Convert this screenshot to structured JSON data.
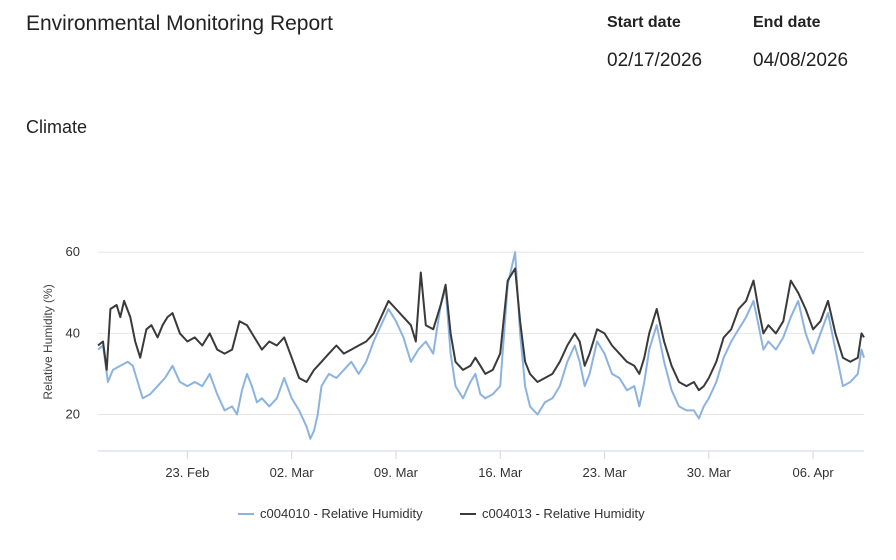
{
  "header": {
    "title": "Environmental Monitoring Report",
    "start_label": "Start date",
    "start_value": "02/17/2026",
    "end_label": "End date",
    "end_value": "04/08/2026"
  },
  "section": {
    "title": "Climate"
  },
  "chart_data": {
    "type": "line",
    "title": "",
    "ylabel": "Relative Humidity (%)",
    "xlabel": "",
    "ylim": [
      11,
      64
    ],
    "xlim": [
      "2026-02-17",
      "2026-04-09T10:00"
    ],
    "y_ticks": [
      20,
      40,
      60
    ],
    "x_ticks": [
      {
        "date": "2026-02-23",
        "label": "23. Feb"
      },
      {
        "date": "2026-03-02",
        "label": "02. Mar"
      },
      {
        "date": "2026-03-09",
        "label": "09. Mar"
      },
      {
        "date": "2026-03-16",
        "label": "16. Mar"
      },
      {
        "date": "2026-03-23",
        "label": "23. Mar"
      },
      {
        "date": "2026-03-30",
        "label": "30. Mar"
      },
      {
        "date": "2026-04-06",
        "label": "06. Apr"
      }
    ],
    "grid": true,
    "legend": "bottom-center",
    "series": [
      {
        "name": "c004010 - Relative Humidity",
        "color": "#8cb3e0",
        "points": [
          [
            "2026-02-17T00:00",
            36
          ],
          [
            "2026-02-17T08:00",
            37
          ],
          [
            "2026-02-17T16:00",
            28
          ],
          [
            "2026-02-18T00:00",
            31
          ],
          [
            "2026-02-18T12:00",
            32
          ],
          [
            "2026-02-19T00:00",
            33
          ],
          [
            "2026-02-19T08:00",
            32
          ],
          [
            "2026-02-19T16:00",
            28
          ],
          [
            "2026-02-20T00:00",
            24
          ],
          [
            "2026-02-20T12:00",
            25
          ],
          [
            "2026-02-21T00:00",
            27
          ],
          [
            "2026-02-21T12:00",
            29
          ],
          [
            "2026-02-22T00:00",
            32
          ],
          [
            "2026-02-22T12:00",
            28
          ],
          [
            "2026-02-23T00:00",
            27
          ],
          [
            "2026-02-23T12:00",
            28
          ],
          [
            "2026-02-24T00:00",
            27
          ],
          [
            "2026-02-24T12:00",
            30
          ],
          [
            "2026-02-25T00:00",
            25
          ],
          [
            "2026-02-25T12:00",
            21
          ],
          [
            "2026-02-26T00:00",
            22
          ],
          [
            "2026-02-26T08:00",
            20
          ],
          [
            "2026-02-26T16:00",
            26
          ],
          [
            "2026-02-27T00:00",
            30
          ],
          [
            "2026-02-27T08:00",
            27
          ],
          [
            "2026-02-27T16:00",
            23
          ],
          [
            "2026-02-28T00:00",
            24
          ],
          [
            "2026-02-28T12:00",
            22
          ],
          [
            "2026-03-01T00:00",
            24
          ],
          [
            "2026-03-01T12:00",
            29
          ],
          [
            "2026-03-02T00:00",
            24
          ],
          [
            "2026-03-02T12:00",
            21
          ],
          [
            "2026-03-03T00:00",
            17
          ],
          [
            "2026-03-03T06:00",
            14
          ],
          [
            "2026-03-03T12:00",
            16
          ],
          [
            "2026-03-03T18:00",
            20
          ],
          [
            "2026-03-04T00:00",
            27
          ],
          [
            "2026-03-04T12:00",
            30
          ],
          [
            "2026-03-05T00:00",
            29
          ],
          [
            "2026-03-05T12:00",
            31
          ],
          [
            "2026-03-06T00:00",
            33
          ],
          [
            "2026-03-06T12:00",
            30
          ],
          [
            "2026-03-07T00:00",
            33
          ],
          [
            "2026-03-07T12:00",
            38
          ],
          [
            "2026-03-08T00:00",
            42
          ],
          [
            "2026-03-08T12:00",
            46
          ],
          [
            "2026-03-09T00:00",
            43
          ],
          [
            "2026-03-09T12:00",
            39
          ],
          [
            "2026-03-10T00:00",
            33
          ],
          [
            "2026-03-10T12:00",
            36
          ],
          [
            "2026-03-11T00:00",
            38
          ],
          [
            "2026-03-11T12:00",
            35
          ],
          [
            "2026-03-12T00:00",
            47
          ],
          [
            "2026-03-12T08:00",
            51
          ],
          [
            "2026-03-12T16:00",
            35
          ],
          [
            "2026-03-13T00:00",
            27
          ],
          [
            "2026-03-13T12:00",
            24
          ],
          [
            "2026-03-14T00:00",
            28
          ],
          [
            "2026-03-14T08:00",
            30
          ],
          [
            "2026-03-14T16:00",
            25
          ],
          [
            "2026-03-15T00:00",
            24
          ],
          [
            "2026-03-15T12:00",
            25
          ],
          [
            "2026-03-16T00:00",
            27
          ],
          [
            "2026-03-16T12:00",
            52
          ],
          [
            "2026-03-17T00:00",
            60
          ],
          [
            "2026-03-17T08:00",
            40
          ],
          [
            "2026-03-17T16:00",
            27
          ],
          [
            "2026-03-18T00:00",
            22
          ],
          [
            "2026-03-18T12:00",
            20
          ],
          [
            "2026-03-19T00:00",
            23
          ],
          [
            "2026-03-19T12:00",
            24
          ],
          [
            "2026-03-20T00:00",
            27
          ],
          [
            "2026-03-20T12:00",
            33
          ],
          [
            "2026-03-21T00:00",
            37
          ],
          [
            "2026-03-21T08:00",
            33
          ],
          [
            "2026-03-21T16:00",
            27
          ],
          [
            "2026-03-22T00:00",
            30
          ],
          [
            "2026-03-22T12:00",
            38
          ],
          [
            "2026-03-23T00:00",
            35
          ],
          [
            "2026-03-23T12:00",
            30
          ],
          [
            "2026-03-24T00:00",
            29
          ],
          [
            "2026-03-24T12:00",
            26
          ],
          [
            "2026-03-25T00:00",
            27
          ],
          [
            "2026-03-25T08:00",
            22
          ],
          [
            "2026-03-25T16:00",
            28
          ],
          [
            "2026-03-26T00:00",
            36
          ],
          [
            "2026-03-26T12:00",
            42
          ],
          [
            "2026-03-27T00:00",
            33
          ],
          [
            "2026-03-27T12:00",
            26
          ],
          [
            "2026-03-28T00:00",
            22
          ],
          [
            "2026-03-28T12:00",
            21
          ],
          [
            "2026-03-29T00:00",
            21
          ],
          [
            "2026-03-29T08:00",
            19
          ],
          [
            "2026-03-29T16:00",
            22
          ],
          [
            "2026-03-30T00:00",
            24
          ],
          [
            "2026-03-30T12:00",
            28
          ],
          [
            "2026-03-31T00:00",
            34
          ],
          [
            "2026-03-31T12:00",
            38
          ],
          [
            "2026-04-01T00:00",
            41
          ],
          [
            "2026-04-01T12:00",
            44
          ],
          [
            "2026-04-02T00:00",
            48
          ],
          [
            "2026-04-02T08:00",
            42
          ],
          [
            "2026-04-02T16:00",
            36
          ],
          [
            "2026-04-03T00:00",
            38
          ],
          [
            "2026-04-03T12:00",
            36
          ],
          [
            "2026-04-04T00:00",
            39
          ],
          [
            "2026-04-04T12:00",
            44
          ],
          [
            "2026-04-05T00:00",
            48
          ],
          [
            "2026-04-05T12:00",
            40
          ],
          [
            "2026-04-06T00:00",
            35
          ],
          [
            "2026-04-06T12:00",
            40
          ],
          [
            "2026-04-07T00:00",
            45
          ],
          [
            "2026-04-07T12:00",
            36
          ],
          [
            "2026-04-08T00:00",
            27
          ],
          [
            "2026-04-08T12:00",
            28
          ],
          [
            "2026-04-09T00:00",
            30
          ],
          [
            "2026-04-09T06:00",
            36
          ],
          [
            "2026-04-09T10:00",
            34
          ]
        ]
      },
      {
        "name": "c004013 - Relative Humidity",
        "color": "#3a3a3a",
        "points": [
          [
            "2026-02-17T00:00",
            37
          ],
          [
            "2026-02-17T08:00",
            38
          ],
          [
            "2026-02-17T14:00",
            31
          ],
          [
            "2026-02-17T20:00",
            46
          ],
          [
            "2026-02-18T06:00",
            47
          ],
          [
            "2026-02-18T12:00",
            44
          ],
          [
            "2026-02-18T18:00",
            48
          ],
          [
            "2026-02-19T04:00",
            44
          ],
          [
            "2026-02-19T12:00",
            38
          ],
          [
            "2026-02-19T20:00",
            34
          ],
          [
            "2026-02-20T06:00",
            41
          ],
          [
            "2026-02-20T14:00",
            42
          ],
          [
            "2026-02-21T00:00",
            39
          ],
          [
            "2026-02-21T08:00",
            42
          ],
          [
            "2026-02-21T16:00",
            44
          ],
          [
            "2026-02-22T00:00",
            45
          ],
          [
            "2026-02-22T12:00",
            40
          ],
          [
            "2026-02-23T00:00",
            38
          ],
          [
            "2026-02-23T12:00",
            39
          ],
          [
            "2026-02-24T00:00",
            37
          ],
          [
            "2026-02-24T12:00",
            40
          ],
          [
            "2026-02-25T00:00",
            36
          ],
          [
            "2026-02-25T12:00",
            35
          ],
          [
            "2026-02-26T00:00",
            36
          ],
          [
            "2026-02-26T12:00",
            43
          ],
          [
            "2026-02-27T00:00",
            42
          ],
          [
            "2026-02-27T12:00",
            39
          ],
          [
            "2026-02-28T00:00",
            36
          ],
          [
            "2026-02-28T12:00",
            38
          ],
          [
            "2026-03-01T00:00",
            37
          ],
          [
            "2026-03-01T12:00",
            39
          ],
          [
            "2026-03-02T00:00",
            34
          ],
          [
            "2026-03-02T12:00",
            29
          ],
          [
            "2026-03-03T00:00",
            28
          ],
          [
            "2026-03-03T12:00",
            31
          ],
          [
            "2026-03-04T00:00",
            33
          ],
          [
            "2026-03-04T12:00",
            35
          ],
          [
            "2026-03-05T00:00",
            37
          ],
          [
            "2026-03-05T12:00",
            35
          ],
          [
            "2026-03-06T00:00",
            36
          ],
          [
            "2026-03-06T12:00",
            37
          ],
          [
            "2026-03-07T00:00",
            38
          ],
          [
            "2026-03-07T12:00",
            40
          ],
          [
            "2026-03-08T00:00",
            44
          ],
          [
            "2026-03-08T12:00",
            48
          ],
          [
            "2026-03-09T00:00",
            46
          ],
          [
            "2026-03-09T12:00",
            44
          ],
          [
            "2026-03-10T00:00",
            42
          ],
          [
            "2026-03-10T08:00",
            38
          ],
          [
            "2026-03-10T16:00",
            55
          ],
          [
            "2026-03-11T00:00",
            42
          ],
          [
            "2026-03-11T12:00",
            41
          ],
          [
            "2026-03-12T00:00",
            47
          ],
          [
            "2026-03-12T08:00",
            52
          ],
          [
            "2026-03-12T16:00",
            40
          ],
          [
            "2026-03-13T00:00",
            33
          ],
          [
            "2026-03-13T12:00",
            31
          ],
          [
            "2026-03-14T00:00",
            32
          ],
          [
            "2026-03-14T08:00",
            34
          ],
          [
            "2026-03-14T16:00",
            32
          ],
          [
            "2026-03-15T00:00",
            30
          ],
          [
            "2026-03-15T12:00",
            31
          ],
          [
            "2026-03-16T00:00",
            35
          ],
          [
            "2026-03-16T12:00",
            53
          ],
          [
            "2026-03-17T00:00",
            56
          ],
          [
            "2026-03-17T08:00",
            43
          ],
          [
            "2026-03-17T16:00",
            33
          ],
          [
            "2026-03-18T00:00",
            30
          ],
          [
            "2026-03-18T12:00",
            28
          ],
          [
            "2026-03-19T00:00",
            29
          ],
          [
            "2026-03-19T12:00",
            30
          ],
          [
            "2026-03-20T00:00",
            33
          ],
          [
            "2026-03-20T12:00",
            37
          ],
          [
            "2026-03-21T00:00",
            40
          ],
          [
            "2026-03-21T08:00",
            38
          ],
          [
            "2026-03-21T16:00",
            32
          ],
          [
            "2026-03-22T00:00",
            35
          ],
          [
            "2026-03-22T12:00",
            41
          ],
          [
            "2026-03-23T00:00",
            40
          ],
          [
            "2026-03-23T12:00",
            37
          ],
          [
            "2026-03-24T00:00",
            35
          ],
          [
            "2026-03-24T12:00",
            33
          ],
          [
            "2026-03-25T00:00",
            32
          ],
          [
            "2026-03-25T08:00",
            30
          ],
          [
            "2026-03-25T16:00",
            34
          ],
          [
            "2026-03-26T00:00",
            40
          ],
          [
            "2026-03-26T12:00",
            46
          ],
          [
            "2026-03-27T00:00",
            38
          ],
          [
            "2026-03-27T12:00",
            32
          ],
          [
            "2026-03-28T00:00",
            28
          ],
          [
            "2026-03-28T12:00",
            27
          ],
          [
            "2026-03-29T00:00",
            28
          ],
          [
            "2026-03-29T08:00",
            26
          ],
          [
            "2026-03-29T16:00",
            27
          ],
          [
            "2026-03-30T00:00",
            29
          ],
          [
            "2026-03-30T12:00",
            33
          ],
          [
            "2026-03-31T00:00",
            39
          ],
          [
            "2026-03-31T12:00",
            41
          ],
          [
            "2026-04-01T00:00",
            46
          ],
          [
            "2026-04-01T12:00",
            48
          ],
          [
            "2026-04-02T00:00",
            53
          ],
          [
            "2026-04-02T08:00",
            46
          ],
          [
            "2026-04-02T16:00",
            40
          ],
          [
            "2026-04-03T00:00",
            42
          ],
          [
            "2026-04-03T12:00",
            40
          ],
          [
            "2026-04-04T00:00",
            43
          ],
          [
            "2026-04-04T12:00",
            53
          ],
          [
            "2026-04-05T00:00",
            50
          ],
          [
            "2026-04-05T12:00",
            46
          ],
          [
            "2026-04-06T00:00",
            41
          ],
          [
            "2026-04-06T12:00",
            43
          ],
          [
            "2026-04-07T00:00",
            48
          ],
          [
            "2026-04-07T12:00",
            40
          ],
          [
            "2026-04-08T00:00",
            34
          ],
          [
            "2026-04-08T12:00",
            33
          ],
          [
            "2026-04-09T00:00",
            34
          ],
          [
            "2026-04-09T06:00",
            40
          ],
          [
            "2026-04-09T10:00",
            39
          ]
        ]
      }
    ]
  }
}
